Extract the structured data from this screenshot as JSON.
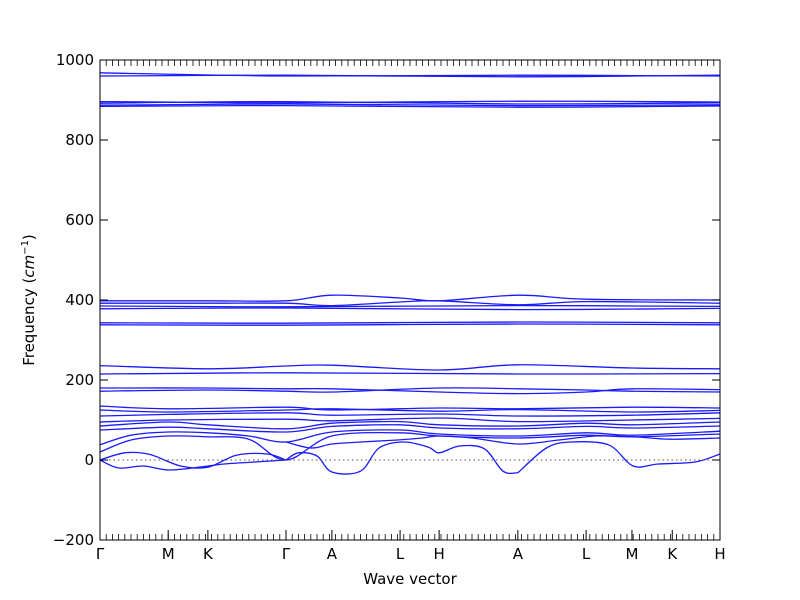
{
  "chart_data": {
    "type": "line",
    "title": "",
    "xlabel": "Wave vector",
    "ylabel_text": "Frequency (",
    "ylabel_unit": "cm",
    "ylabel_exp": "−1",
    "ylabel_close": ")",
    "ylim": [
      -200,
      1000
    ],
    "xlim": [
      0,
      1
    ],
    "yticks": [
      -200,
      0,
      200,
      400,
      600,
      800,
      1000
    ],
    "ytick_labels": [
      "−200",
      "0",
      "200",
      "400",
      "600",
      "800",
      "1000"
    ],
    "xticks": [
      {
        "label": "Γ",
        "pos": 0.0
      },
      {
        "label": "M",
        "pos": 0.11
      },
      {
        "label": "K",
        "pos": 0.174
      },
      {
        "label": "Γ",
        "pos": 0.3
      },
      {
        "label": "A",
        "pos": 0.374
      },
      {
        "label": "L",
        "pos": 0.484
      },
      {
        "label": "H",
        "pos": 0.547
      },
      {
        "label": "A",
        "pos": 0.674
      },
      {
        "label": "L",
        "pos": 0.784
      },
      {
        "label": "M",
        "pos": 0.858
      },
      {
        "label": "K",
        "pos": 0.923
      },
      {
        "label": "H",
        "pos": 1.0
      }
    ],
    "grid": false,
    "reference_line": {
      "y": 0,
      "style": "dotted"
    },
    "line_color": "#1a1aff",
    "bands": [
      {
        "x": [
          0,
          0.3,
          0.674,
          1.0
        ],
        "y": [
          968,
          960,
          962,
          960
        ]
      },
      {
        "x": [
          0,
          0.3,
          0.674,
          1.0
        ],
        "y": [
          960,
          962,
          958,
          962
        ]
      },
      {
        "x": [
          0,
          0.3,
          0.674,
          1.0
        ],
        "y": [
          896,
          893,
          897,
          895
        ]
      },
      {
        "x": [
          0,
          0.3,
          0.674,
          1.0
        ],
        "y": [
          892,
          896,
          890,
          893
        ]
      },
      {
        "x": [
          0,
          0.3,
          0.674,
          1.0
        ],
        "y": [
          887,
          890,
          886,
          888
        ]
      },
      {
        "x": [
          0,
          0.3,
          0.674,
          1.0
        ],
        "y": [
          884,
          886,
          882,
          885
        ]
      },
      {
        "x": [
          0,
          0.174,
          0.3,
          0.374,
          0.484,
          0.547,
          0.674,
          0.784,
          1.0
        ],
        "y": [
          398,
          398,
          398,
          412,
          405,
          398,
          412,
          402,
          400
        ]
      },
      {
        "x": [
          0,
          0.174,
          0.3,
          0.374,
          0.484,
          0.547,
          0.674,
          0.784,
          1.0
        ],
        "y": [
          392,
          392,
          392,
          386,
          395,
          398,
          388,
          396,
          392
        ]
      },
      {
        "x": [
          0,
          0.3,
          0.674,
          1.0
        ],
        "y": [
          385,
          383,
          386,
          384
        ]
      },
      {
        "x": [
          0,
          0.3,
          0.674,
          1.0
        ],
        "y": [
          378,
          380,
          376,
          379
        ]
      },
      {
        "x": [
          0,
          0.3,
          0.674,
          1.0
        ],
        "y": [
          343,
          342,
          345,
          343
        ]
      },
      {
        "x": [
          0,
          0.3,
          0.674,
          1.0
        ],
        "y": [
          338,
          337,
          340,
          338
        ]
      },
      {
        "x": [
          0,
          0.174,
          0.3,
          0.374,
          0.547,
          0.674,
          0.858,
          1.0
        ],
        "y": [
          236,
          228,
          235,
          237,
          225,
          238,
          230,
          228
        ]
      },
      {
        "x": [
          0,
          0.3,
          0.674,
          1.0
        ],
        "y": [
          215,
          218,
          215,
          216
        ]
      },
      {
        "x": [
          0,
          0.174,
          0.3,
          0.374,
          0.547,
          0.674,
          0.784,
          0.858,
          1.0
        ],
        "y": [
          180,
          180,
          178,
          178,
          170,
          166,
          170,
          178,
          176
        ]
      },
      {
        "x": [
          0,
          0.174,
          0.3,
          0.374,
          0.547,
          0.674,
          0.784,
          0.858,
          1.0
        ],
        "y": [
          172,
          175,
          172,
          170,
          180,
          178,
          175,
          172,
          170
        ]
      },
      {
        "x": [
          0,
          0.11,
          0.3,
          0.374,
          0.547,
          0.674,
          0.858,
          1.0
        ],
        "y": [
          135,
          128,
          132,
          125,
          130,
          128,
          132,
          130
        ]
      },
      {
        "x": [
          0,
          0.11,
          0.3,
          0.374,
          0.547,
          0.674,
          0.858,
          1.0
        ],
        "y": [
          125,
          120,
          125,
          128,
          122,
          126,
          120,
          124
        ]
      },
      {
        "x": [
          0,
          0.11,
          0.3,
          0.374,
          0.547,
          0.674,
          0.858,
          1.0
        ],
        "y": [
          110,
          114,
          118,
          112,
          115,
          110,
          112,
          118
        ]
      },
      {
        "x": [
          0,
          0.11,
          0.3,
          0.374,
          0.547,
          0.674,
          0.858,
          1.0
        ],
        "y": [
          95,
          100,
          102,
          98,
          105,
          96,
          100,
          104
        ]
      },
      {
        "x": [
          0,
          0.11,
          0.174,
          0.3,
          0.374,
          0.484,
          0.547,
          0.674,
          0.784,
          0.858,
          1.0
        ],
        "y": [
          85,
          95,
          88,
          78,
          92,
          96,
          88,
          85,
          92,
          88,
          95
        ]
      },
      {
        "x": [
          0,
          0.11,
          0.174,
          0.3,
          0.374,
          0.484,
          0.547,
          0.674,
          0.784,
          0.858,
          1.0
        ],
        "y": [
          75,
          82,
          78,
          70,
          84,
          88,
          80,
          78,
          84,
          80,
          85
        ]
      },
      {
        "x": [
          0,
          0.05,
          0.11,
          0.174,
          0.24,
          0.3,
          0.374,
          0.484,
          0.547,
          0.674,
          0.784,
          0.858,
          1.0
        ],
        "y": [
          38,
          62,
          70,
          68,
          60,
          45,
          70,
          75,
          65,
          60,
          68,
          62,
          72
        ]
      },
      {
        "x": [
          0,
          0.05,
          0.11,
          0.174,
          0.24,
          0.3,
          0.374,
          0.484,
          0.547,
          0.674,
          0.784,
          0.858,
          1.0
        ],
        "y": [
          20,
          50,
          60,
          58,
          52,
          0,
          60,
          68,
          60,
          55,
          62,
          58,
          65
        ]
      },
      {
        "x": [
          0,
          0.04,
          0.08,
          0.13,
          0.174,
          0.22,
          0.27,
          0.3
        ],
        "y": [
          0,
          18,
          14,
          -15,
          -18,
          12,
          15,
          0
        ]
      },
      {
        "x": [
          0,
          0.03,
          0.07,
          0.11,
          0.16,
          0.2,
          0.25,
          0.3
        ],
        "y": [
          0,
          -20,
          -15,
          -25,
          -18,
          -10,
          -5,
          0
        ]
      },
      {
        "x": [
          0.3,
          0.32,
          0.35,
          0.374,
          0.42,
          0.45,
          0.49,
          0.53,
          0.547,
          0.58,
          0.62,
          0.65,
          0.674
        ],
        "y": [
          0,
          18,
          10,
          -30,
          -28,
          30,
          45,
          32,
          18,
          35,
          28,
          -28,
          -32
        ]
      },
      {
        "x": [
          0.674,
          0.72,
          0.76,
          0.82,
          0.86,
          0.9,
          0.96,
          1.0
        ],
        "y": [
          -32,
          30,
          45,
          38,
          -15,
          -10,
          -5,
          15
        ]
      },
      {
        "x": [
          0.3,
          0.34,
          0.374,
          0.42,
          0.48,
          0.52,
          0.547,
          0.6,
          0.674,
          0.74,
          0.8,
          0.86,
          0.92,
          1.0
        ],
        "y": [
          45,
          30,
          40,
          45,
          50,
          55,
          60,
          55,
          40,
          50,
          60,
          58,
          52,
          55
        ]
      }
    ]
  }
}
